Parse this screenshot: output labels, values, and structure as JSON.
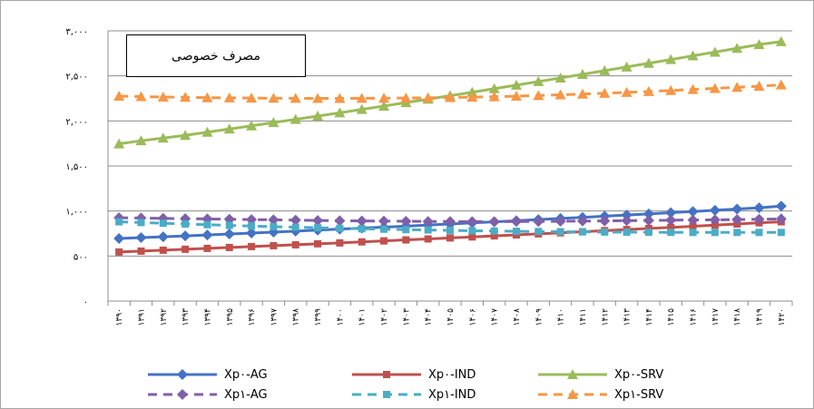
{
  "chart_data": {
    "type": "line",
    "title": "مصرف خصوصی",
    "ylim": [
      0,
      3000
    ],
    "yticks": [
      "۰",
      "۵۰۰",
      "۱,۰۰۰",
      "۱,۵۰۰",
      "۲,۰۰۰",
      "۲,۵۰۰",
      "۳,۰۰۰"
    ],
    "categories": [
      "۱۳۹۰",
      "۱۳۹۱",
      "۱۳۹۲",
      "۱۳۹۳",
      "۱۳۹۴",
      "۱۳۹۵",
      "۱۳۹۶",
      "۱۳۹۷",
      "۱۳۹۸",
      "۱۳۹۹",
      "۱۴۰۰",
      "۱۴۰۱",
      "۱۴۰۲",
      "۱۴۰۳",
      "۱۴۰۴",
      "۱۴۰۵",
      "۱۴۰۶",
      "۱۴۰۷",
      "۱۴۰۸",
      "۱۴۰۹",
      "۱۴۱۰",
      "۱۴۱۱",
      "۱۴۱۲",
      "۱۴۱۳",
      "۱۴۱۴",
      "۱۴۱۵",
      "۱۴۱۶",
      "۱۴۱۷",
      "۱۴۱۸",
      "۱۴۱۹",
      "۱۴۲۰"
    ],
    "grid": true,
    "legend_position": "bottom",
    "series": [
      {
        "name": "Xp۰-AG",
        "color": "#4472c4",
        "dash": "solid",
        "marker": "diamond",
        "values": [
          695,
          705,
          714,
          724,
          734,
          745,
          755,
          765,
          777,
          788,
          799,
          810,
          821,
          832,
          844,
          856,
          868,
          880,
          892,
          905,
          917,
          929,
          942,
          955,
          968,
          981,
          994,
          1008,
          1022,
          1036,
          1055
        ]
      },
      {
        "name": "Xp۰-IND",
        "color": "#c0504d",
        "dash": "solid",
        "marker": "square",
        "values": [
          545,
          555,
          565,
          575,
          585,
          595,
          605,
          615,
          625,
          636,
          646,
          657,
          668,
          679,
          690,
          701,
          712,
          724,
          735,
          746,
          758,
          770,
          782,
          794,
          806,
          818,
          830,
          843,
          856,
          869,
          880
        ]
      },
      {
        "name": "Xp۰-SRV",
        "color": "#9bbb59",
        "dash": "solid",
        "marker": "triangle",
        "values": [
          1745,
          1780,
          1810,
          1840,
          1875,
          1910,
          1945,
          1982,
          2017,
          2054,
          2090,
          2128,
          2165,
          2203,
          2241,
          2280,
          2318,
          2358,
          2397,
          2437,
          2477,
          2517,
          2558,
          2599,
          2640,
          2681,
          2723,
          2764,
          2806,
          2848,
          2880
        ]
      },
      {
        "name": "Xp۱-AG",
        "color": "#7f5fa8",
        "dash": "dash",
        "marker": "diamond",
        "values": [
          925,
          922,
          918,
          915,
          912,
          908,
          905,
          902,
          898,
          895,
          892,
          890,
          888,
          886,
          884,
          883,
          882,
          882,
          883,
          884,
          886,
          888,
          890,
          893,
          895,
          898,
          900,
          902,
          905,
          908,
          912
        ]
      },
      {
        "name": "Xp۱-IND",
        "color": "#4bacc6",
        "dash": "dash",
        "marker": "square",
        "values": [
          880,
          872,
          864,
          856,
          848,
          840,
          833,
          826,
          820,
          814,
          808,
          803,
          798,
          793,
          789,
          785,
          781,
          778,
          775,
          772,
          770,
          768,
          766,
          765,
          764,
          763,
          762,
          762,
          762,
          762,
          762
        ]
      },
      {
        "name": "Xp۱-SRV",
        "color": "#f79646",
        "dash": "dash",
        "marker": "triangle",
        "values": [
          2275,
          2270,
          2265,
          2262,
          2258,
          2256,
          2254,
          2252,
          2251,
          2250,
          2250,
          2251,
          2252,
          2254,
          2256,
          2260,
          2264,
          2269,
          2275,
          2282,
          2290,
          2298,
          2307,
          2317,
          2327,
          2338,
          2349,
          2361,
          2373,
          2386,
          2400
        ]
      }
    ]
  }
}
